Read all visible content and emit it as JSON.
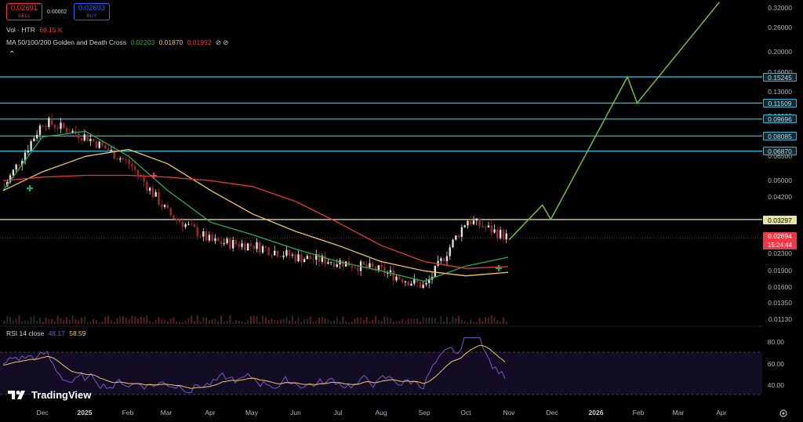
{
  "header": {
    "sell_price": "0.02691",
    "sell_label": "SELL",
    "spread": "0.00002",
    "buy_price": "0.02693",
    "buy_label": "BUY"
  },
  "legends": {
    "volume": {
      "label": "Vol · HTR",
      "value": "68.15 K"
    },
    "ma": {
      "label": "MA 50/100/200 Golden and Death Cross",
      "ma50": "0.02203",
      "ma100": "0.01870",
      "ma200": "0.01992",
      "icons": "⊘ ⊘"
    },
    "collapse_icon": "⌃",
    "rsi": {
      "label": "RSI 14 close",
      "value1": "48.17",
      "value2": "58.59"
    }
  },
  "colors": {
    "ma50": "#22ab5b",
    "ma100": "#f0c75e",
    "ma200": "#e53935",
    "level_line": "#29b6d8",
    "current_level": "#e6e6a0",
    "price_red": "#f23645",
    "projection": "#6fbf43",
    "rsi": "#7e57c2",
    "rsi_ma": "#f0c75e"
  },
  "price_axis": {
    "ticks": [
      "0.32000",
      "0.26000",
      "0.20000",
      "0.16000",
      "0.13000",
      "0.10000",
      "0.08000",
      "0.06500",
      "0.05000",
      "0.04200",
      "0.03300",
      "0.02800",
      "0.02300",
      "0.01900",
      "0.01600",
      "0.01350",
      "0.01130"
    ],
    "levels": [
      "0.15245",
      "0.11509",
      "0.09696",
      "0.08085",
      "0.06870"
    ],
    "current_level": "0.03297",
    "last_price": "0.02694",
    "countdown": "15:24:44"
  },
  "time_axis": {
    "labels": [
      "Dec",
      "2025",
      "Feb",
      "Mar",
      "Apr",
      "May",
      "Jun",
      "Jul",
      "Aug",
      "Sep",
      "Oct",
      "Nov",
      "Dec",
      "2026",
      "Feb",
      "Mar",
      "Apr"
    ]
  },
  "rsi_axis": {
    "ticks": [
      "80.00",
      "60.00",
      "40.00"
    ]
  },
  "branding": {
    "logo_text": "TradingView"
  },
  "chart_data": {
    "type": "line",
    "title": "",
    "xlabel": "",
    "ylabel": "",
    "y_scale": "log",
    "x": [
      "2024-11",
      "2024-12",
      "2025-01",
      "2025-02",
      "2025-03",
      "2025-04",
      "2025-05",
      "2025-06",
      "2025-07",
      "2025-08",
      "2025-09",
      "2025-10",
      "2025-11"
    ],
    "series": [
      {
        "values": [
          0.045,
          0.095,
          0.08,
          0.06,
          0.035,
          0.026,
          0.025,
          0.022,
          0.021,
          0.019,
          0.016,
          0.033,
          0.027
        ]
      },
      {
        "values": [
          0.045,
          0.08,
          0.085,
          0.065,
          0.045,
          0.032,
          0.028,
          0.024,
          0.021,
          0.019,
          0.017,
          0.02,
          0.022
        ]
      },
      {
        "values": [
          0.045,
          0.055,
          0.065,
          0.07,
          0.06,
          0.045,
          0.035,
          0.029,
          0.025,
          0.021,
          0.019,
          0.018,
          0.0187
        ]
      },
      {
        "values": [
          0.05,
          0.052,
          0.053,
          0.053,
          0.052,
          0.05,
          0.047,
          0.04,
          0.032,
          0.025,
          0.021,
          0.0195,
          0.0199
        ]
      }
    ],
    "projection": [
      {
        "x": "2025-11",
        "y": 0.0265
      },
      {
        "x": "2025-11-25",
        "y": 0.0385
      },
      {
        "x": "2025-12",
        "y": 0.033
      },
      {
        "x": "2026-01-25",
        "y": 0.1524
      },
      {
        "x": "2026-02",
        "y": 0.1151
      },
      {
        "x": "2026-04",
        "y": 0.34
      }
    ],
    "horizontal_levels": [
      0.15245,
      0.11509,
      0.09696,
      0.08085,
      0.0687,
      0.03297
    ]
  }
}
